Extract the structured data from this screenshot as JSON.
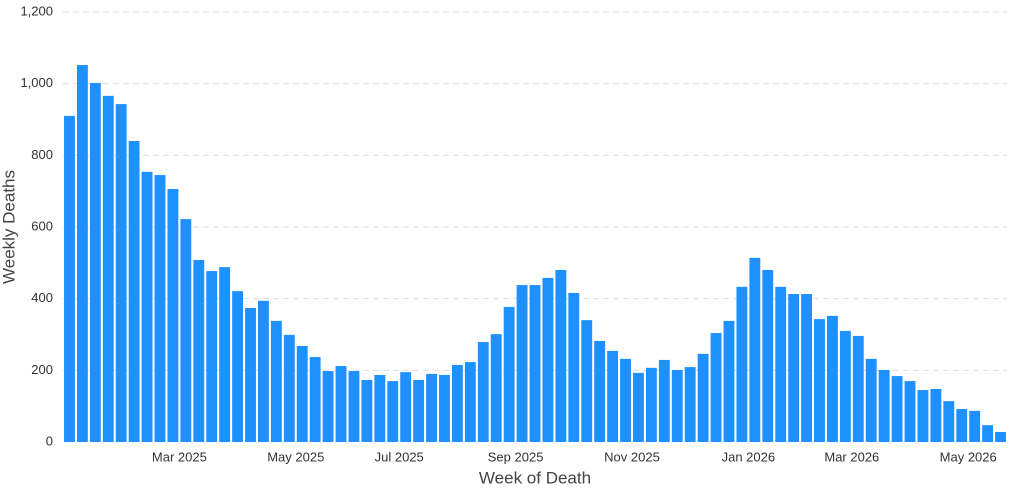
{
  "chart_data": {
    "type": "bar",
    "x_label": "Week of Death",
    "y_label": "Weekly Deaths",
    "color": "#1e90ff",
    "grid": true,
    "ylim": [
      0,
      1200
    ],
    "yticks": [
      0,
      200,
      400,
      600,
      800,
      {
        "value": 1000,
        "label": "1,000"
      },
      {
        "value": 1200,
        "label": "1,200"
      }
    ],
    "categories": [
      null,
      null,
      null,
      null,
      null,
      null,
      null,
      null,
      "Mar 2025",
      null,
      null,
      null,
      null,
      null,
      null,
      null,
      null,
      "May 2025",
      null,
      null,
      null,
      null,
      null,
      null,
      null,
      "Jul 2025",
      null,
      null,
      null,
      null,
      null,
      null,
      null,
      null,
      "Sep 2025",
      null,
      null,
      null,
      null,
      null,
      null,
      null,
      null,
      "Nov 2025",
      null,
      null,
      null,
      null,
      null,
      null,
      null,
      null,
      "Jan 2026",
      null,
      null,
      null,
      null,
      null,
      null,
      null,
      "Mar 2026",
      null,
      null,
      null,
      null,
      null,
      null,
      null,
      null,
      "May 2026",
      null,
      null,
      null
    ],
    "values": [
      910,
      1052,
      1002,
      966,
      943,
      840,
      754,
      745,
      706,
      622,
      508,
      477,
      488,
      421,
      374,
      394,
      338,
      299,
      268,
      237,
      198,
      212,
      198,
      173,
      187,
      170,
      195,
      173,
      190,
      187,
      215,
      223,
      279,
      301,
      377,
      438,
      438,
      458,
      480,
      416,
      340,
      282,
      254,
      232,
      193,
      207,
      229,
      201,
      209,
      246,
      304,
      338,
      433,
      514,
      480,
      433,
      413,
      413,
      343,
      352,
      310,
      296,
      232,
      201,
      184,
      170,
      145,
      148,
      114,
      92,
      87,
      47,
      28
    ]
  }
}
